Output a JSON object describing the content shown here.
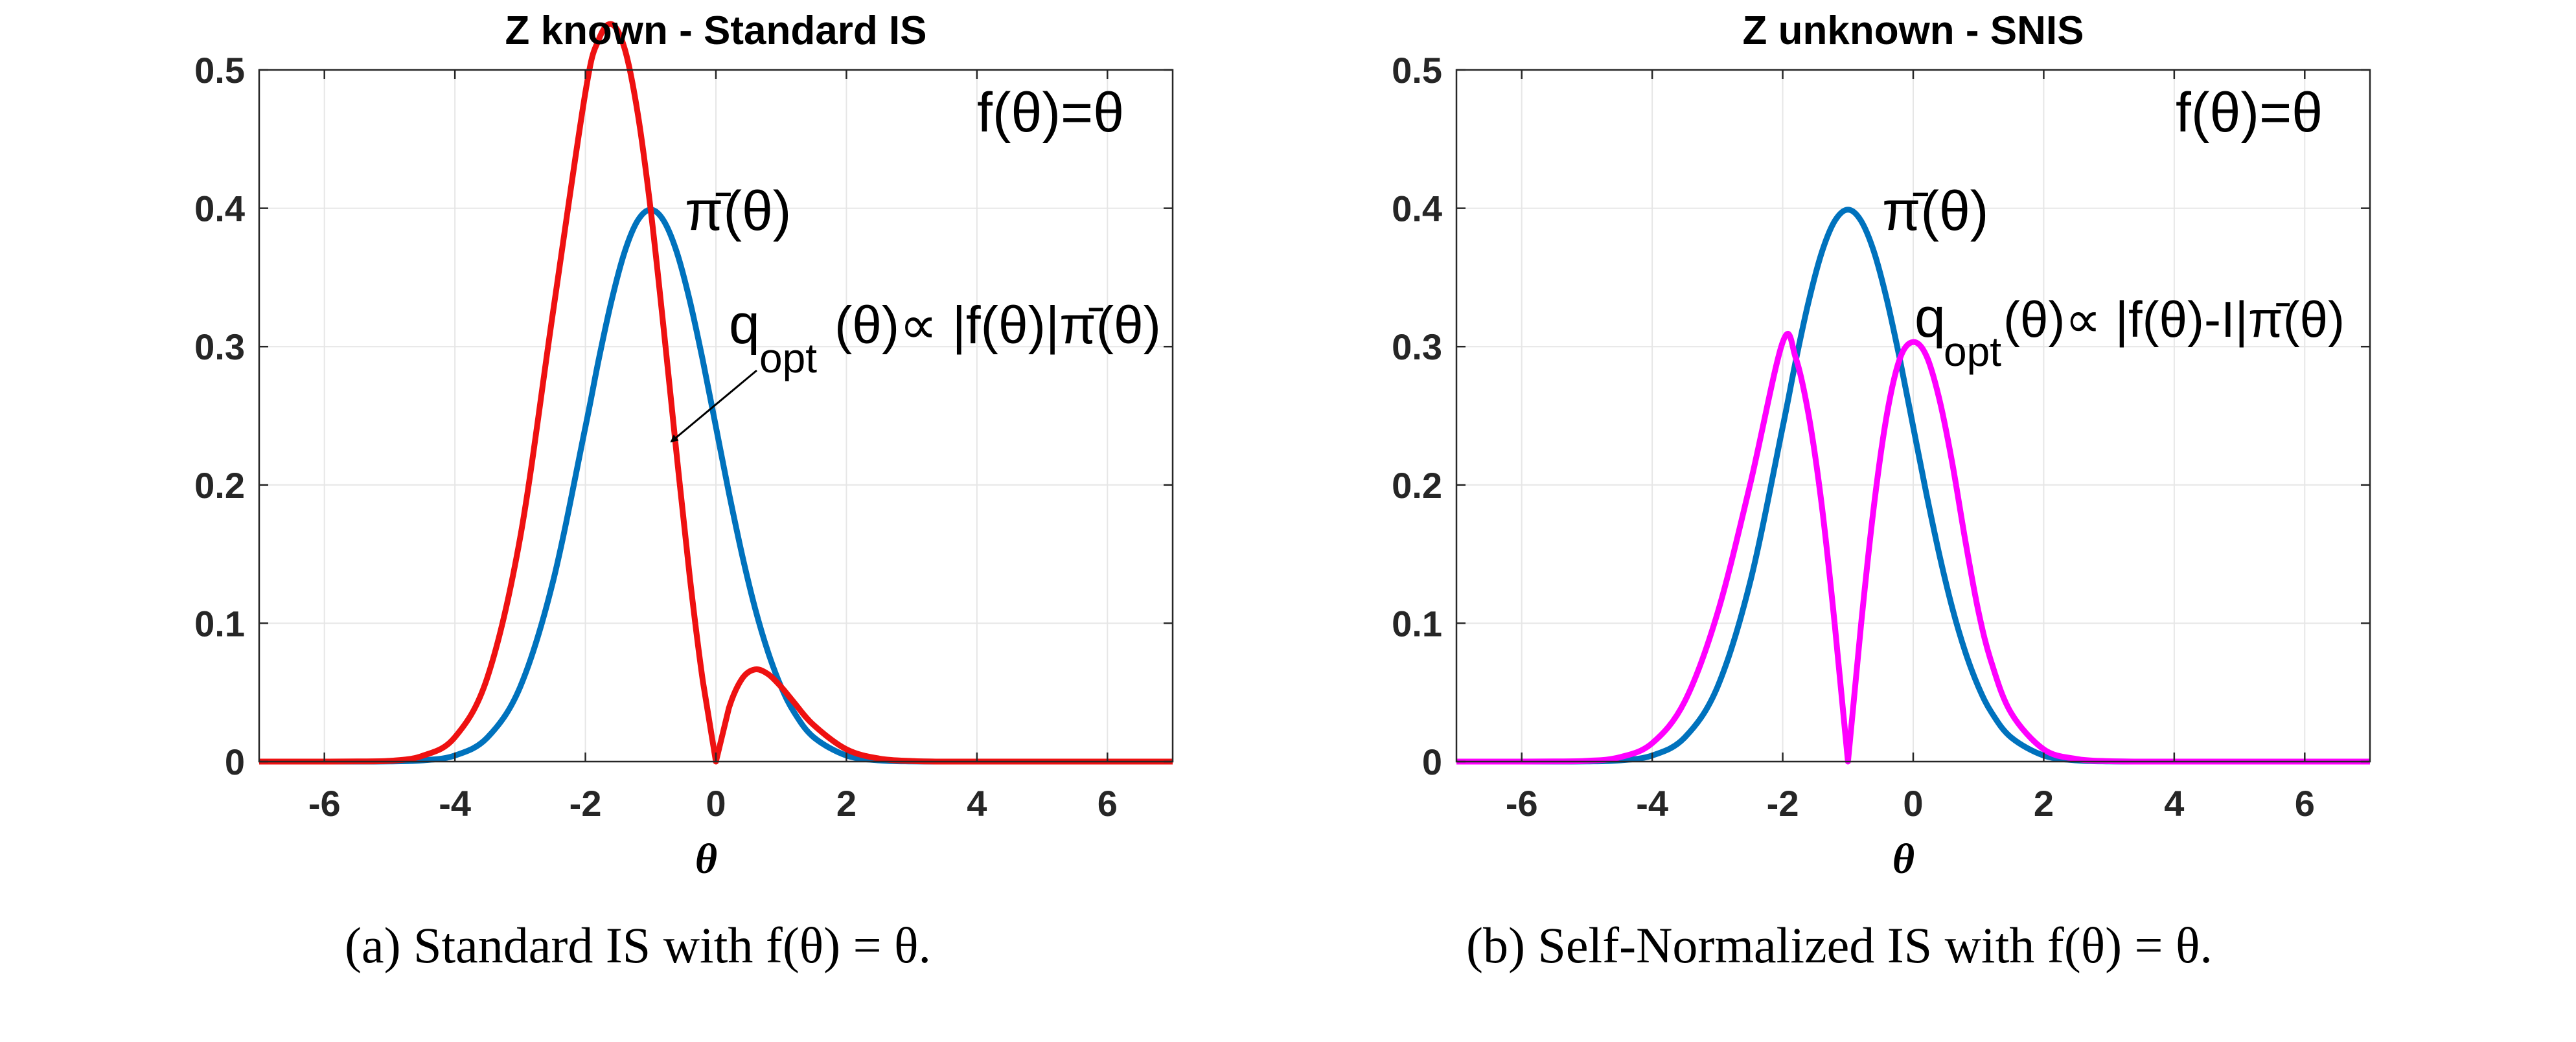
{
  "chart_data": [
    {
      "type": "line",
      "title": "Z known - Standard IS",
      "xlabel": "θ",
      "ylabel": "",
      "xlim": [
        -7,
        7
      ],
      "ylim": [
        0,
        0.5
      ],
      "xticks": [
        -6,
        -4,
        -2,
        0,
        2,
        4,
        6
      ],
      "yticks": [
        0,
        0.1,
        0.2,
        0.3,
        0.4,
        0.5
      ],
      "xtick_labels": [
        "-6",
        "-4",
        "-2",
        "0",
        "2",
        "4",
        "6"
      ],
      "ytick_labels": [
        "0",
        "0.1",
        "0.2",
        "0.3",
        "0.4",
        "0.5"
      ],
      "grid": true,
      "x": [
        -7,
        -6.5,
        -6,
        -5.5,
        -5,
        -4.5,
        -4,
        -3.5,
        -3,
        -2.5,
        -2,
        -1.8,
        -1.6,
        -1.4,
        -1.2,
        -1,
        -0.8,
        -0.6,
        -0.4,
        -0.2,
        0,
        0.2,
        0.4,
        0.6,
        0.8,
        1,
        1.2,
        1.5,
        2,
        2.5,
        3,
        3.5,
        4,
        5,
        6,
        7
      ],
      "series": [
        {
          "color": "#0072BD",
          "values": [
            0,
            0,
            0,
            0,
            0.0001,
            0.0009,
            0.0044,
            0.0175,
            0.054,
            0.1295,
            0.242,
            0.2897,
            0.3332,
            0.3683,
            0.391,
            0.399,
            0.391,
            0.3683,
            0.3332,
            0.2897,
            0.242,
            0.1942,
            0.1497,
            0.1109,
            0.079,
            0.054,
            0.0355,
            0.0175,
            0.0044,
            0.0009,
            0.0001,
            0,
            0,
            0,
            0,
            0
          ]
        },
        {
          "color": "#EE1111",
          "values": [
            0,
            0,
            0,
            0.0001,
            0.0005,
            0.0041,
            0.0176,
            0.0612,
            0.162,
            0.3238,
            0.4839,
            0.5215,
            0.5331,
            0.5156,
            0.4692,
            0.399,
            0.3128,
            0.221,
            0.1333,
            0.0579,
            0,
            0.0388,
            0.0599,
            0.0666,
            0.0632,
            0.054,
            0.0426,
            0.0263,
            0.0089,
            0.0022,
            0.0004,
            0,
            0,
            0,
            0,
            0
          ]
        }
      ],
      "annotations": [
        "f(θ)=θ",
        "π̄(θ)",
        "q",
        "opt",
        "(θ)∝ |f(θ)|π̄(θ)"
      ]
    },
    {
      "type": "line",
      "title": "Z unknown - SNIS",
      "xlabel": "θ",
      "ylabel": "",
      "xlim": [
        -7,
        7
      ],
      "ylim": [
        0,
        0.5
      ],
      "xticks": [
        -6,
        -4,
        -2,
        0,
        2,
        4,
        6
      ],
      "yticks": [
        0,
        0.1,
        0.2,
        0.3,
        0.4,
        0.5
      ],
      "xtick_labels": [
        "-6",
        "-4",
        "-2",
        "0",
        "2",
        "4",
        "6"
      ],
      "ytick_labels": [
        "0",
        "0.1",
        "0.2",
        "0.3",
        "0.4",
        "0.5"
      ],
      "grid": true,
      "x": [
        -7,
        -6.5,
        -6,
        -5.5,
        -5,
        -4.5,
        -4,
        -3.5,
        -3,
        -2.5,
        -2,
        -1.8,
        -1.6,
        -1.4,
        -1.2,
        -1,
        -0.8,
        -0.6,
        -0.4,
        -0.2,
        0,
        0.2,
        0.4,
        0.6,
        0.8,
        1,
        1.2,
        1.5,
        2,
        2.5,
        3,
        3.5,
        4,
        5,
        6,
        7
      ],
      "series": [
        {
          "color": "#0072BD",
          "values": [
            0,
            0,
            0,
            0,
            0.0001,
            0.0009,
            0.0044,
            0.0175,
            0.054,
            0.1295,
            0.242,
            0.2897,
            0.3332,
            0.3683,
            0.391,
            0.399,
            0.391,
            0.3683,
            0.3332,
            0.2897,
            0.242,
            0.1942,
            0.1497,
            0.1109,
            0.079,
            0.054,
            0.0355,
            0.0175,
            0.0044,
            0.0009,
            0.0001,
            0,
            0,
            0,
            0,
            0
          ]
        },
        {
          "color": "#FF00FF",
          "values": [
            0,
            0,
            0,
            0.0001,
            0.0005,
            0.0031,
            0.0133,
            0.0436,
            0.1073,
            0.2002,
            0.3033,
            0.2918,
            0.2498,
            0.1847,
            0.0981,
            0,
            0.0985,
            0.1857,
            0.2518,
            0.2919,
            0.3033,
            0.2936,
            0.2621,
            0.2155,
            0.1593,
            0.1085,
            0.0715,
            0.0352,
            0.0089,
            0.0019,
            0.0003,
            0,
            0,
            0,
            0,
            0
          ]
        }
      ],
      "annotations": [
        "f(θ)=θ",
        "π̄(θ)",
        "q",
        "opt",
        "(θ)∝ |f(θ)-I|π̄(θ)"
      ]
    }
  ],
  "captions": [
    "(a) Standard IS with f(θ) = θ.",
    "(b) Self-Normalized IS with f(θ) = θ."
  ]
}
